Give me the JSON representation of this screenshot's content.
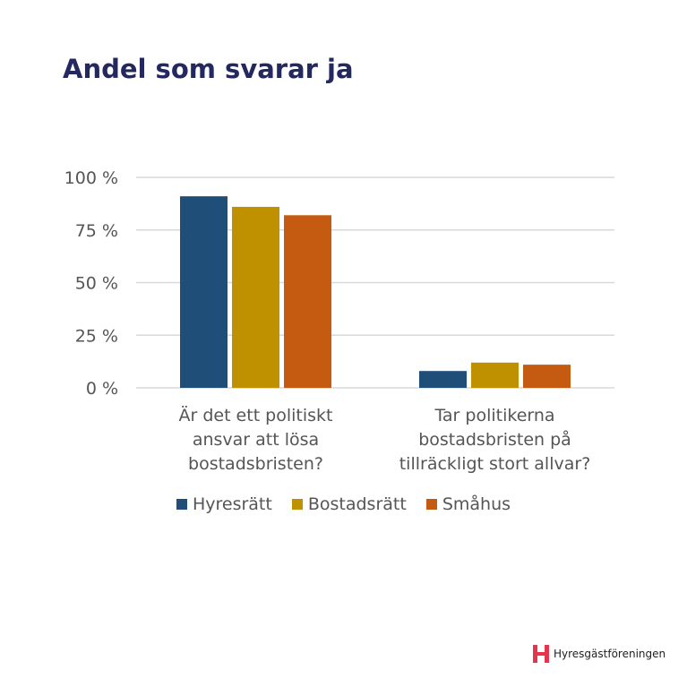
{
  "title": "Andel som svarar ja",
  "chart_data": {
    "type": "bar",
    "title": "Andel som svarar ja",
    "categories": [
      [
        "Är det ett politiskt",
        "ansvar att lösa",
        "bostadsbristen?"
      ],
      [
        "Tar politikerna",
        "bostadsbristen på",
        "tillräckligt stort allvar?"
      ]
    ],
    "series": [
      {
        "name": "Hyresrätt",
        "color": "#1f4e79",
        "values": [
          91,
          8
        ]
      },
      {
        "name": "Bostadsrätt",
        "color": "#bf9000",
        "values": [
          86,
          12
        ]
      },
      {
        "name": "Småhus",
        "color": "#c55a11",
        "values": [
          82,
          11
        ]
      }
    ],
    "yticks": [
      "0 %",
      "25 %",
      "50 %",
      "75 %",
      "100 %"
    ],
    "ylim": [
      0,
      100
    ],
    "grid": true,
    "legend": "bottom"
  },
  "logo": {
    "text": "Hyresgästföreningen",
    "color": "#e5344d"
  }
}
